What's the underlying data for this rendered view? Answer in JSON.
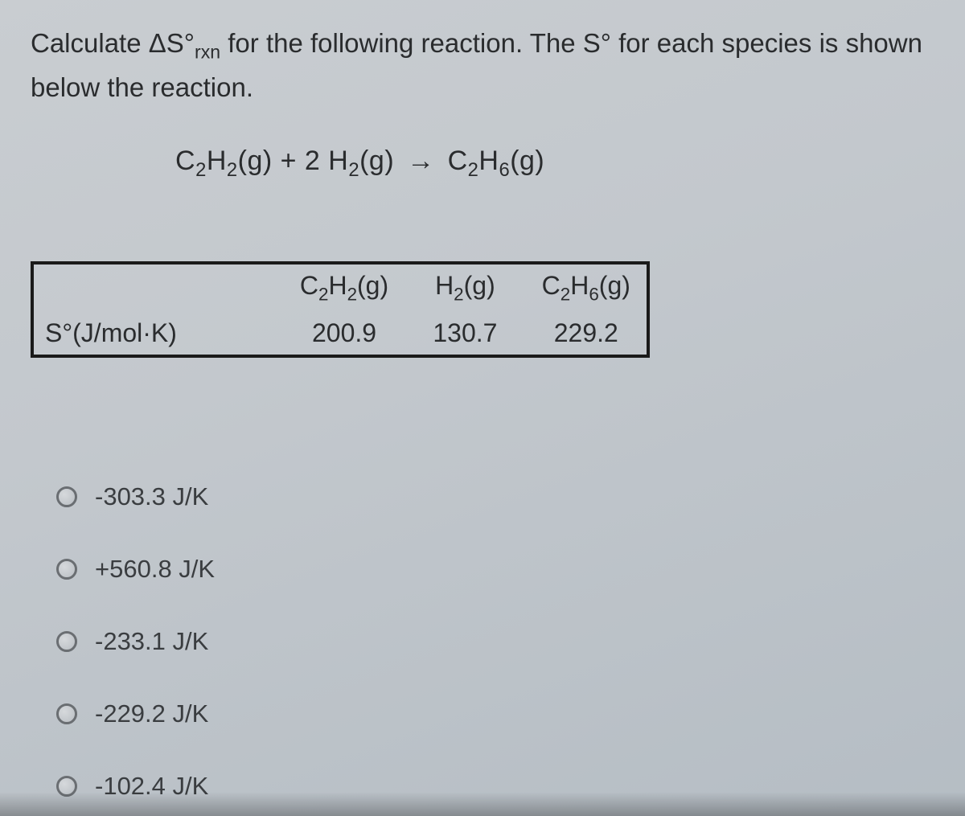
{
  "prompt": {
    "pre": "Calculate ΔS°",
    "sub": "rxn",
    "post": " for the following reaction. The S° for each species is shown below the reaction."
  },
  "equation": {
    "left1_main": "C",
    "left1_sub1": "2",
    "left1_mid": "H",
    "left1_sub2": "2",
    "left1_state": "(g)",
    "plus": " + 2 ",
    "left2_main": "H",
    "left2_sub": "2",
    "left2_state": "(g)",
    "arrow": "→",
    "right_main": "C",
    "right_sub1": "2",
    "right_mid": "H",
    "right_sub2": "6",
    "right_state": "(g)"
  },
  "table": {
    "row_label": "S°(J/mol·K)",
    "headers": {
      "c2h2": "C",
      "c2h2_s1": "2",
      "c2h2_m": "H",
      "c2h2_s2": "2",
      "c2h2_state": "(g)",
      "h2": "H",
      "h2_s": "2",
      "h2_state": "(g)",
      "c2h6": "C",
      "c2h6_s1": "2",
      "c2h6_m": "H",
      "c2h6_s2": "6",
      "c2h6_state": "(g)"
    },
    "values": {
      "c2h2": "200.9",
      "h2": "130.7",
      "c2h6": "229.2"
    }
  },
  "options": [
    "-303.3 J/K",
    "+560.8 J/K",
    "-233.1 J/K",
    "-229.2 J/K",
    "-102.4 J/K"
  ]
}
